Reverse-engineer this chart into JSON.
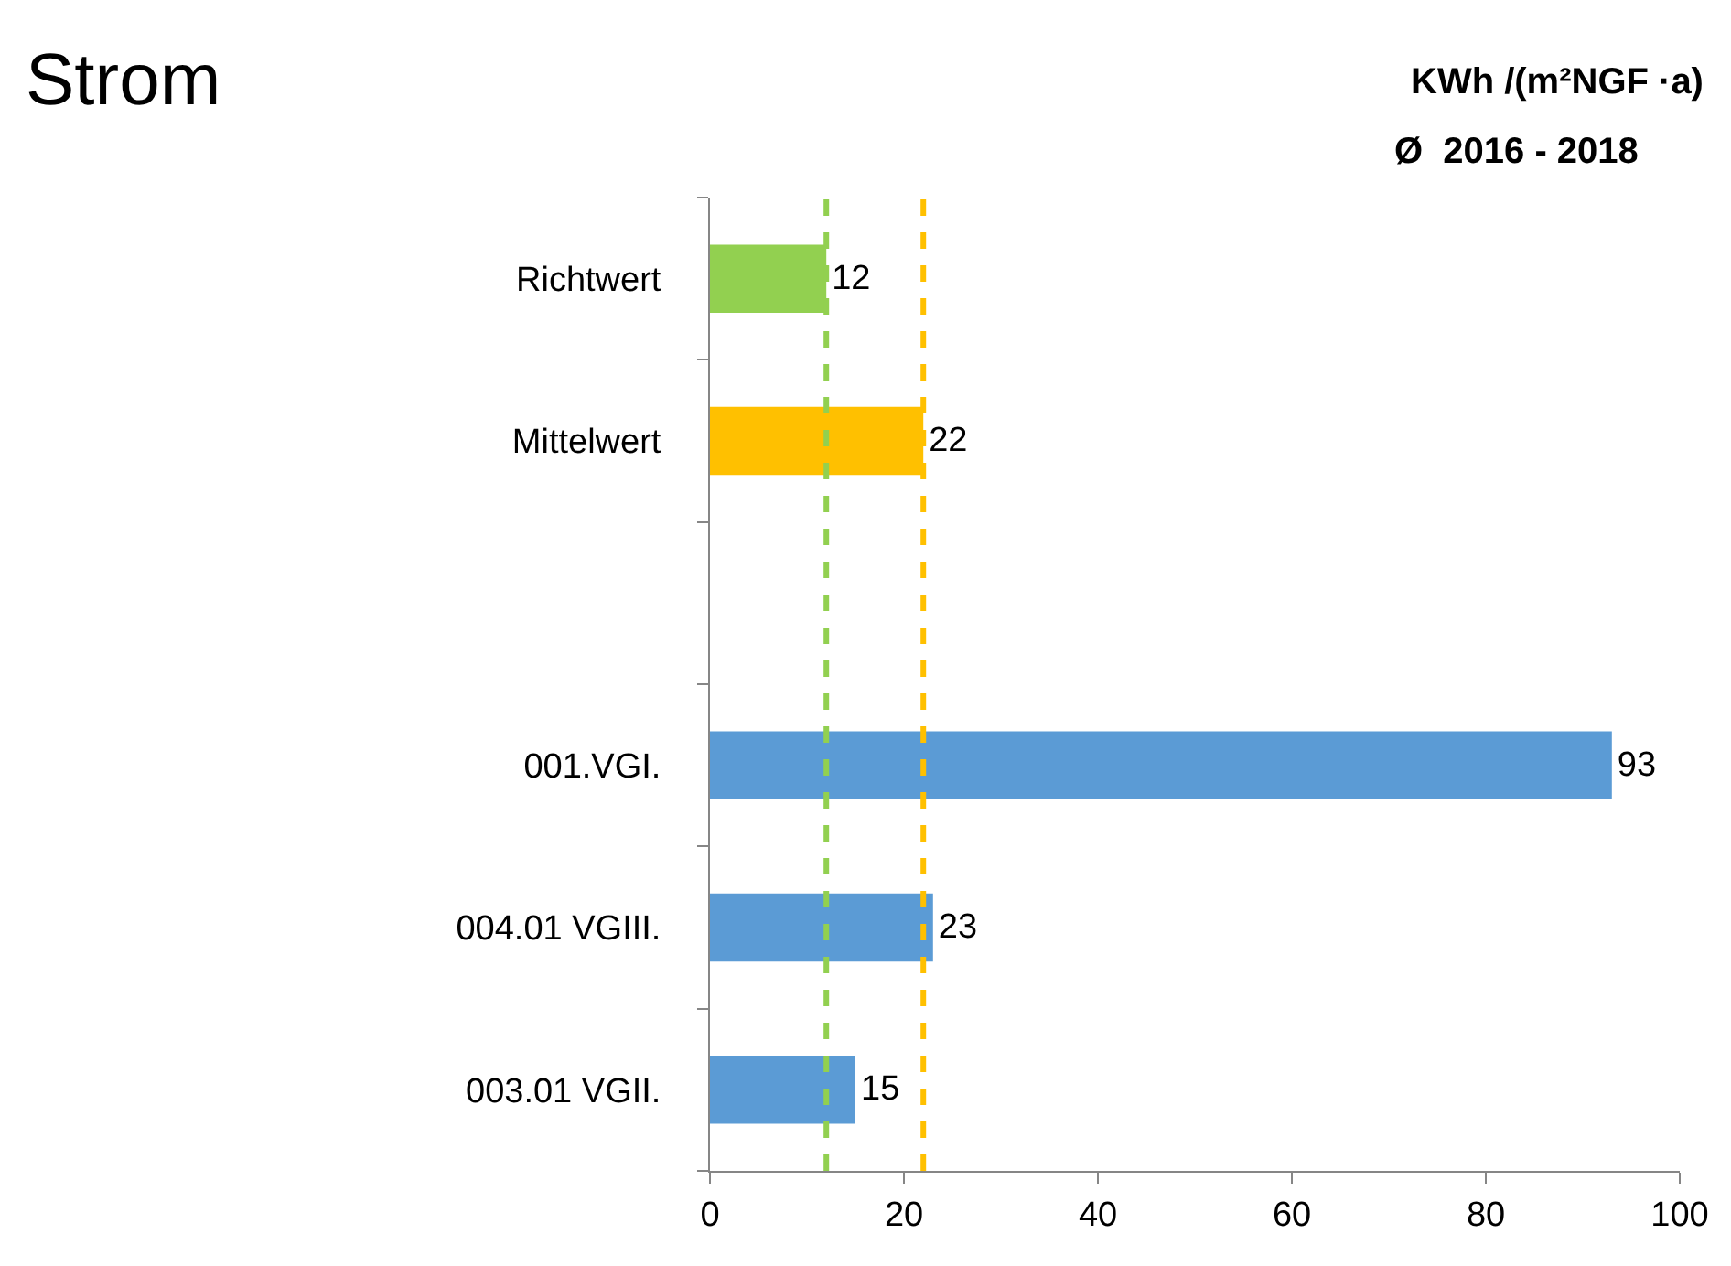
{
  "chart_data": {
    "type": "bar",
    "orientation": "horizontal",
    "title": "Strom",
    "subtitle": "KWh /(m²NGF ·a)",
    "annotations": [
      "Ø  2016 - 2018"
    ],
    "categories": [
      "Richtwert",
      "Mittelwert",
      null,
      "001.VGI.",
      "004.01 VGIII.",
      "003.01 VGII."
    ],
    "values": [
      12,
      22,
      null,
      93,
      23,
      15
    ],
    "colors": [
      "#92d050",
      "#ffc000",
      null,
      "#5b9bd5",
      "#5b9bd5",
      "#5b9bd5"
    ],
    "xlim": [
      0,
      100
    ],
    "xticks": [
      0,
      20,
      40,
      60,
      80,
      100
    ],
    "data_labels": true,
    "ref_lines": [
      {
        "axis": "x",
        "value": 12,
        "color": "#92d050",
        "line_style": "dashed"
      },
      {
        "axis": "x",
        "value": 22,
        "color": "#ffc000",
        "line_style": "dashed"
      }
    ]
  }
}
